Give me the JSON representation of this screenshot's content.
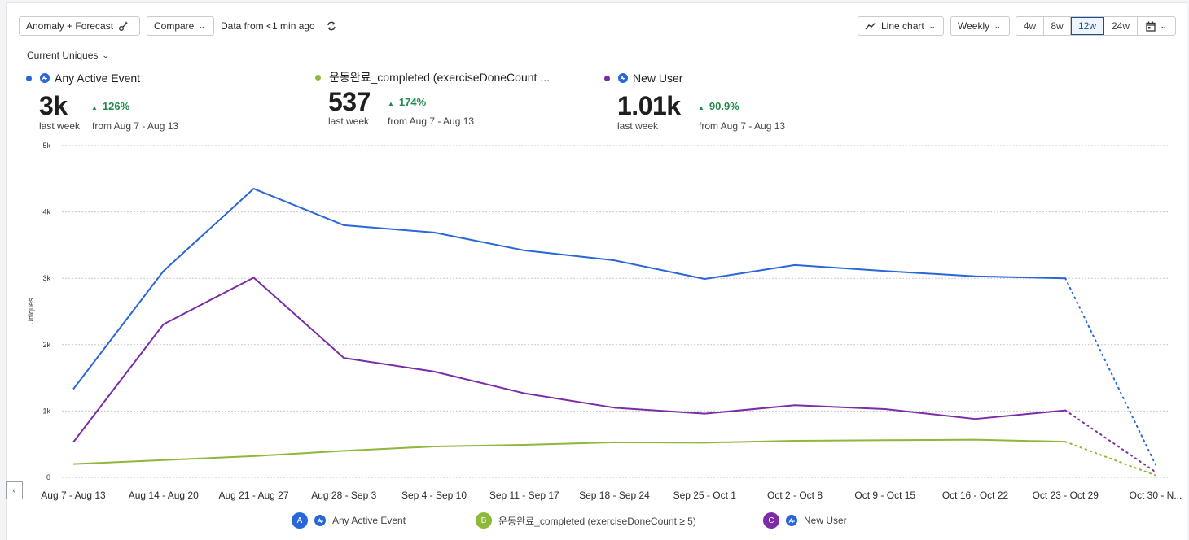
{
  "toolbar": {
    "anomaly_label": "Anomaly + Forecast",
    "compare_label": "Compare",
    "data_freshness": "Data from <1 min ago",
    "chart_type_label": "Line chart",
    "interval_label": "Weekly",
    "ranges": [
      "4w",
      "8w",
      "12w",
      "24w"
    ],
    "active_range": "12w"
  },
  "metric_selector": "Current Uniques",
  "metrics": [
    {
      "name": "Any Active Event",
      "value": "3k",
      "period": "last week",
      "change": "126%",
      "from": "from Aug 7 - Aug 13",
      "color": "#2966d8",
      "has_event_icon": true
    },
    {
      "name": "운동완료_completed (exerciseDoneCount ...",
      "value": "537",
      "period": "last week",
      "change": "174%",
      "from": "from Aug 7 - Aug 13",
      "color": "#8db83a",
      "has_event_icon": false
    },
    {
      "name": "New User",
      "value": "1.01k",
      "period": "last week",
      "change": "90.9%",
      "from": "from Aug 7 - Aug 13",
      "color": "#7b2ca6",
      "has_event_icon": true
    }
  ],
  "legend": [
    {
      "badge": "A",
      "label": "Any Active Event",
      "color": "#2966d8"
    },
    {
      "badge": "B",
      "label": "운동완료_completed (exerciseDoneCount ≥ 5)",
      "color": "#8db83a"
    },
    {
      "badge": "C",
      "label": "New User",
      "color": "#7b2ca6"
    }
  ],
  "chart_data": {
    "type": "line",
    "title": "",
    "xlabel": "",
    "ylabel": "Uniques",
    "ylim": [
      0,
      5000
    ],
    "yticks": [
      0,
      1000,
      2000,
      3000,
      4000,
      5000
    ],
    "ytick_labels": [
      "0",
      "1k",
      "2k",
      "3k",
      "4k",
      "5k"
    ],
    "grid": true,
    "legend_position": "bottom",
    "categories": [
      "Aug 7 - Aug 13",
      "Aug 14 - Aug 20",
      "Aug 21 - Aug 27",
      "Aug 28 - Sep 3",
      "Sep 4 - Sep 10",
      "Sep 11 - Sep 17",
      "Sep 18 - Sep 24",
      "Sep 25 - Oct 1",
      "Oct 2 - Oct 8",
      "Oct 9 - Oct 15",
      "Oct 16 - Oct 22",
      "Oct 23 - Oct 29",
      "Oct 30 - N..."
    ],
    "incomplete_from_index": 11,
    "series": [
      {
        "name": "Any Active Event",
        "color": "#2966d8",
        "values": [
          1330,
          3110,
          4350,
          3800,
          3690,
          3420,
          3270,
          2990,
          3200,
          3110,
          3030,
          3000,
          190
        ]
      },
      {
        "name": "운동완료_completed (exerciseDoneCount ≥ 5)",
        "color": "#8db83a",
        "values": [
          200,
          260,
          320,
          400,
          466,
          490,
          528,
          523,
          552,
          560,
          568,
          537,
          30
        ]
      },
      {
        "name": "New User",
        "color": "#7b2ca6",
        "values": [
          530,
          2307,
          3010,
          1800,
          1595,
          1267,
          1050,
          960,
          1087,
          1030,
          880,
          1010,
          80
        ]
      }
    ]
  }
}
